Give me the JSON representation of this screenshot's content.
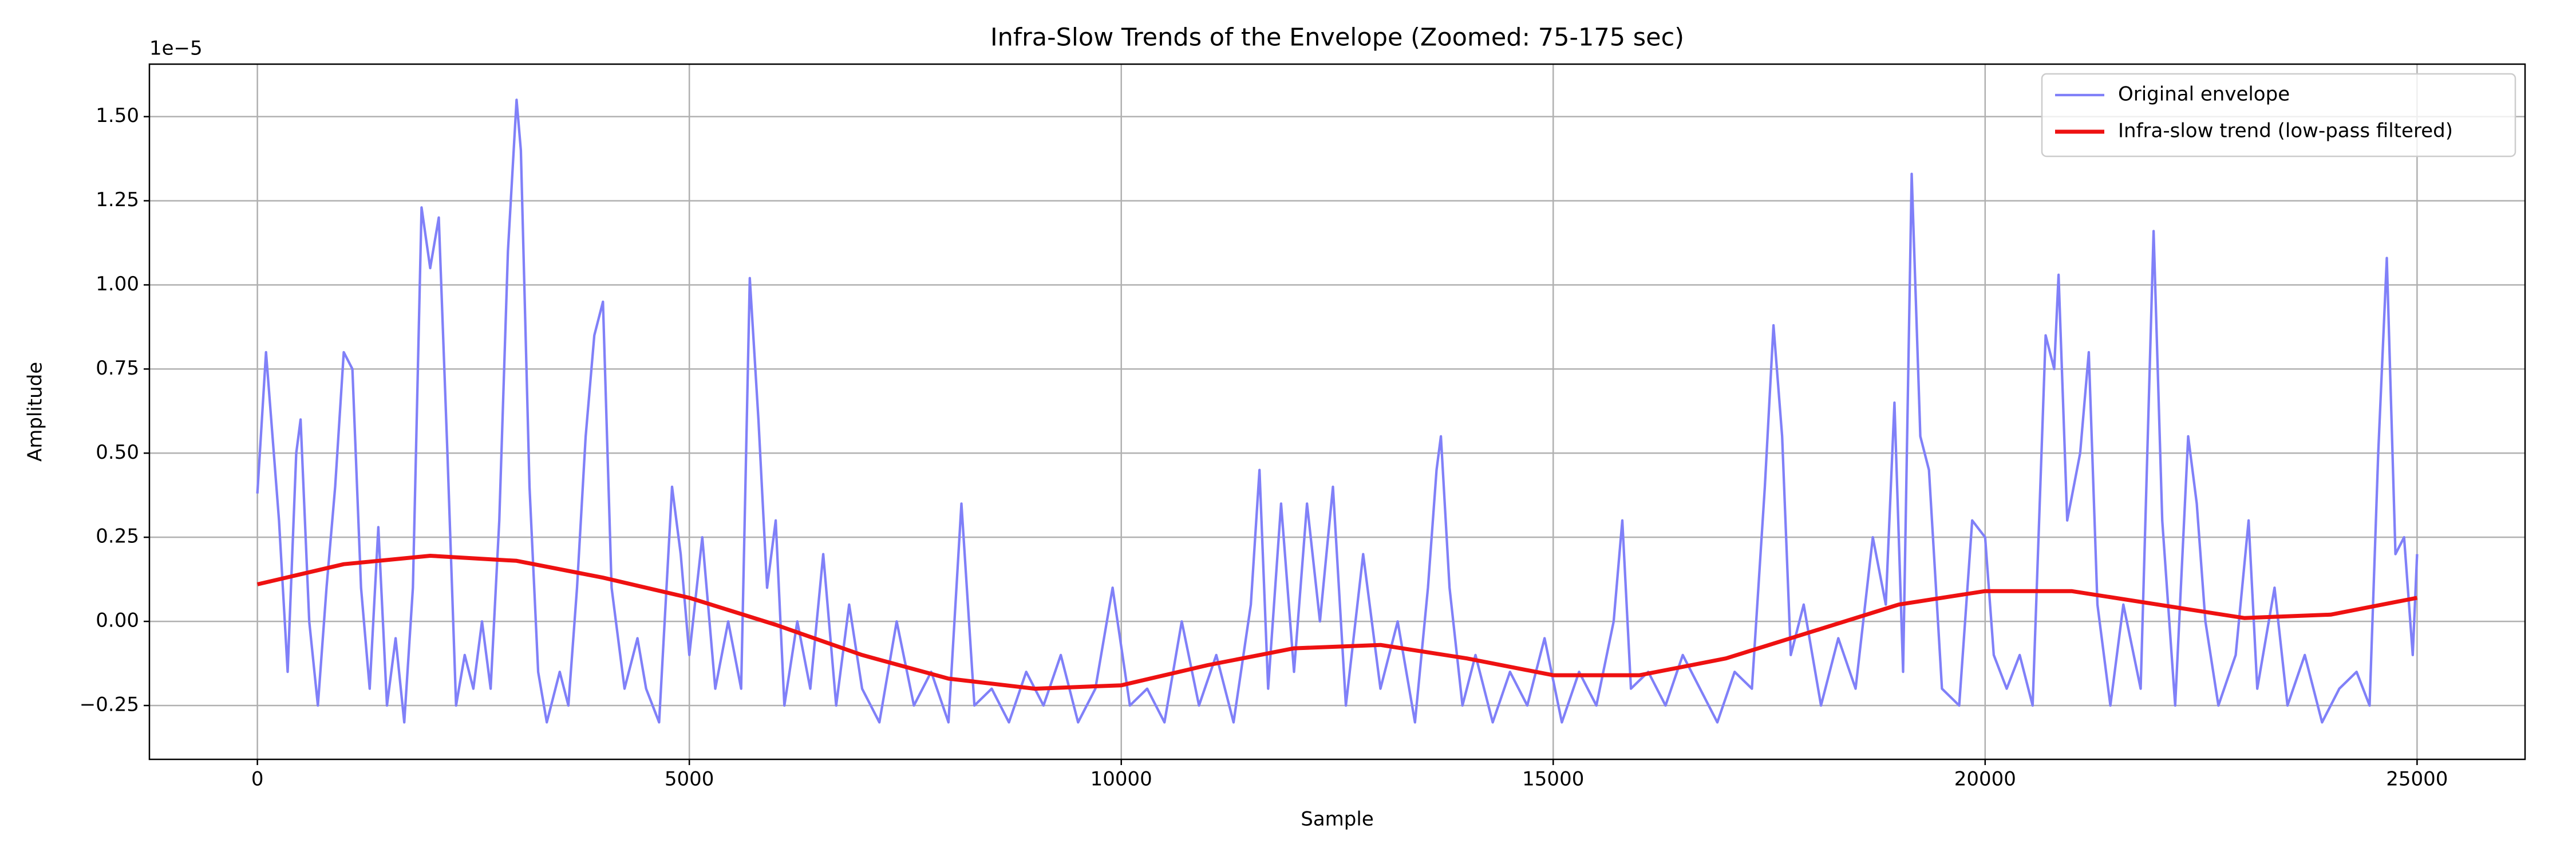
{
  "chart_data": {
    "type": "line",
    "title": "Infra-Slow Trends of the Envelope (Zoomed: 75-175 sec)",
    "x_label": "Sample",
    "y_label": "Amplitude",
    "y_offset_label": "1e−5",
    "xlim": [
      -1250,
      26250
    ],
    "ylim": [
      -0.41,
      1.656
    ],
    "xticks": [
      0,
      5000,
      10000,
      15000,
      20000,
      25000
    ],
    "yticks": [
      {
        "value": -0.25,
        "label": "−0.25"
      },
      {
        "value": 0,
        "label": "0.00"
      },
      0.25,
      {
        "value": 0.5,
        "label": "0.50"
      },
      0.75,
      {
        "value": 1,
        "label": "1.00"
      },
      1.25,
      {
        "value": 1.5,
        "label": "1.50"
      }
    ],
    "grid": true,
    "legend": "upper right",
    "series": [
      {
        "name": "Original envelope",
        "color": "#8080f8",
        "x": [
          0,
          100,
          250,
          350,
          450,
          500,
          600,
          700,
          800,
          900,
          1000,
          1100,
          1200,
          1300,
          1400,
          1500,
          1600,
          1700,
          1800,
          1900,
          2000,
          2100,
          2200,
          2300,
          2400,
          2500,
          2600,
          2700,
          2800,
          2900,
          3000,
          3050,
          3150,
          3250,
          3350,
          3500,
          3600,
          3700,
          3800,
          3900,
          4000,
          4100,
          4250,
          4400,
          4500,
          4650,
          4800,
          4900,
          5000,
          5150,
          5300,
          5450,
          5600,
          5700,
          5800,
          5900,
          6000,
          6100,
          6250,
          6400,
          6550,
          6700,
          6850,
          7000,
          7200,
          7400,
          7600,
          7800,
          8000,
          8150,
          8300,
          8500,
          8700,
          8900,
          9100,
          9300,
          9500,
          9700,
          9900,
          10100,
          10300,
          10500,
          10700,
          10900,
          11100,
          11300,
          11500,
          11600,
          11700,
          11850,
          12000,
          12150,
          12300,
          12450,
          12600,
          12800,
          13000,
          13200,
          13400,
          13550,
          13650,
          13700,
          13800,
          13950,
          14100,
          14300,
          14500,
          14700,
          14900,
          15100,
          15300,
          15500,
          15700,
          15800,
          15900,
          16100,
          16300,
          16500,
          16700,
          16900,
          17100,
          17300,
          17450,
          17550,
          17650,
          17750,
          17900,
          18100,
          18300,
          18500,
          18700,
          18850,
          18950,
          19050,
          19150,
          19250,
          19350,
          19500,
          19700,
          19850,
          20000,
          20100,
          20250,
          20400,
          20550,
          20700,
          20800,
          20850,
          20950,
          21100,
          21200,
          21300,
          21450,
          21600,
          21800,
          21950,
          22050,
          22200,
          22350,
          22450,
          22550,
          22700,
          22900,
          23050,
          23150,
          23350,
          23500,
          23700,
          23900,
          24100,
          24300,
          24450,
          24550,
          24650,
          24750,
          24850,
          24950,
          25000
        ],
        "values": [
          0.38,
          0.8,
          0.3,
          -0.15,
          0.5,
          0.6,
          0.0,
          -0.25,
          0.1,
          0.4,
          0.8,
          0.75,
          0.1,
          -0.2,
          0.28,
          -0.25,
          -0.05,
          -0.3,
          0.1,
          1.23,
          1.05,
          1.2,
          0.5,
          -0.25,
          -0.1,
          -0.2,
          0.0,
          -0.2,
          0.3,
          1.1,
          1.55,
          1.4,
          0.4,
          -0.15,
          -0.3,
          -0.15,
          -0.25,
          0.1,
          0.55,
          0.85,
          0.95,
          0.1,
          -0.2,
          -0.05,
          -0.2,
          -0.3,
          0.4,
          0.2,
          -0.1,
          0.25,
          -0.2,
          0.0,
          -0.2,
          1.02,
          0.6,
          0.1,
          0.3,
          -0.25,
          0.0,
          -0.2,
          0.2,
          -0.25,
          0.05,
          -0.2,
          -0.3,
          0.0,
          -0.25,
          -0.15,
          -0.3,
          0.35,
          -0.25,
          -0.2,
          -0.3,
          -0.15,
          -0.25,
          -0.1,
          -0.3,
          -0.2,
          0.1,
          -0.25,
          -0.2,
          -0.3,
          0.0,
          -0.25,
          -0.1,
          -0.3,
          0.05,
          0.45,
          -0.2,
          0.35,
          -0.15,
          0.35,
          0.0,
          0.4,
          -0.25,
          0.2,
          -0.2,
          0.0,
          -0.3,
          0.1,
          0.45,
          0.55,
          0.1,
          -0.25,
          -0.1,
          -0.3,
          -0.15,
          -0.25,
          -0.05,
          -0.3,
          -0.15,
          -0.25,
          0.0,
          0.3,
          -0.2,
          -0.15,
          -0.25,
          -0.1,
          -0.2,
          -0.3,
          -0.15,
          -0.2,
          0.4,
          0.88,
          0.55,
          -0.1,
          0.05,
          -0.25,
          -0.05,
          -0.2,
          0.25,
          0.05,
          0.65,
          -0.15,
          1.33,
          0.55,
          0.45,
          -0.2,
          -0.25,
          0.3,
          0.25,
          -0.1,
          -0.2,
          -0.1,
          -0.25,
          0.85,
          0.75,
          1.03,
          0.3,
          0.5,
          0.8,
          0.05,
          -0.25,
          0.05,
          -0.2,
          1.16,
          0.3,
          -0.25,
          0.55,
          0.35,
          0.0,
          -0.25,
          -0.1,
          0.3,
          -0.2,
          0.1,
          -0.25,
          -0.1,
          -0.3,
          -0.2,
          -0.15,
          -0.25,
          0.5,
          1.08,
          0.2,
          0.25,
          -0.1,
          0.2
        ]
      },
      {
        "name": "Infra-slow trend (low-pass filtered)",
        "color": "#ee1111",
        "x": [
          0,
          1000,
          2000,
          3000,
          4000,
          5000,
          6000,
          7000,
          8000,
          9000,
          10000,
          11000,
          12000,
          13000,
          14000,
          15000,
          16000,
          17000,
          18000,
          19000,
          20000,
          21000,
          22000,
          23000,
          24000,
          25000
        ],
        "values": [
          0.11,
          0.17,
          0.195,
          0.18,
          0.13,
          0.07,
          -0.01,
          -0.1,
          -0.17,
          -0.2,
          -0.19,
          -0.13,
          -0.08,
          -0.07,
          -0.11,
          -0.16,
          -0.16,
          -0.11,
          -0.03,
          0.05,
          0.09,
          0.09,
          0.05,
          0.01,
          0.02,
          0.07
        ]
      }
    ]
  }
}
